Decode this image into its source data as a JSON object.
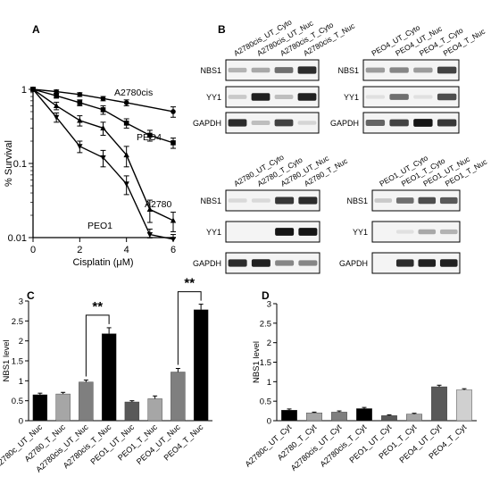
{
  "panels": {
    "A": "A",
    "B": "B",
    "C": "C",
    "D": "D"
  },
  "chart_data": [
    {
      "type": "line",
      "panel": "A",
      "title": "",
      "xlabel": "Cisplatin (μM)",
      "ylabel": "% Survival",
      "yscale": "log",
      "xlim": [
        0,
        6
      ],
      "ylim": [
        0.01,
        1
      ],
      "x_ticks": [
        0,
        2,
        4,
        6
      ],
      "y_ticks": [
        {
          "v": 1,
          "label": "1"
        },
        {
          "v": 0.1,
          "label": "0.1"
        },
        {
          "v": 0.01,
          "label": "0.01"
        }
      ],
      "series": [
        {
          "name": "A2780cis",
          "marker": "circle",
          "x": [
            0,
            1,
            2,
            3,
            4,
            6
          ],
          "y": [
            1.0,
            0.93,
            0.85,
            0.75,
            0.66,
            0.5
          ],
          "err": [
            0.04,
            0.05,
            0.05,
            0.05,
            0.06,
            0.08
          ]
        },
        {
          "name": "PEO4",
          "marker": "square",
          "x": [
            0,
            1,
            2,
            3,
            4,
            5,
            6
          ],
          "y": [
            1.0,
            0.82,
            0.66,
            0.53,
            0.35,
            0.24,
            0.19
          ],
          "err": [
            0.04,
            0.06,
            0.06,
            0.07,
            0.05,
            0.04,
            0.03
          ]
        },
        {
          "name": "A2780",
          "marker": "triangle",
          "x": [
            0,
            1,
            2,
            3,
            4,
            5,
            6
          ],
          "y": [
            1.0,
            0.6,
            0.38,
            0.3,
            0.13,
            0.024,
            0.017
          ],
          "err": [
            0.05,
            0.07,
            0.06,
            0.06,
            0.04,
            0.008,
            0.005
          ]
        },
        {
          "name": "PEO1",
          "marker": "triangle-down",
          "x": [
            0,
            1,
            2,
            3,
            4,
            5,
            6
          ],
          "y": [
            1.0,
            0.42,
            0.17,
            0.12,
            0.053,
            0.011,
            0.0095
          ],
          "err": [
            0.05,
            0.06,
            0.03,
            0.03,
            0.015,
            0.002,
            0.0015
          ]
        }
      ]
    },
    {
      "type": "bar",
      "panel": "C",
      "title": "",
      "xlabel": "",
      "ylabel": "NBS1 level",
      "ylim": [
        0,
        3
      ],
      "y_ticks": [
        0,
        0.5,
        1,
        1.5,
        2,
        2.5,
        3
      ],
      "categories": [
        "A2780c_UT_Nuc",
        "A2780_T_Nuc",
        "A2780cis_UT_Nuc",
        "A2780cis_T_Nuc",
        "PEO1_UT_Nuc",
        "PEO1_T_Nuc",
        "PEO4_UT_Nuc",
        "PEO4_T_Nuc"
      ],
      "values": [
        0.65,
        0.67,
        0.97,
        2.18,
        0.47,
        0.55,
        1.22,
        2.78
      ],
      "errors": [
        0.04,
        0.04,
        0.05,
        0.15,
        0.03,
        0.07,
        0.09,
        0.14
      ],
      "colors": [
        "#000000",
        "#a6a6a6",
        "#7f7f7f",
        "#000000",
        "#595959",
        "#a6a6a6",
        "#7f7f7f",
        "#000000"
      ],
      "annotations": [
        {
          "text": "**",
          "between": [
            2,
            3
          ]
        },
        {
          "text": "**",
          "between": [
            6,
            7
          ]
        }
      ]
    },
    {
      "type": "bar",
      "panel": "D",
      "title": "",
      "xlabel": "",
      "ylabel": "NBS1 level",
      "ylim": [
        0,
        3
      ],
      "y_ticks": [
        0,
        0.5,
        1,
        1.5,
        2,
        2.5,
        3
      ],
      "categories": [
        "A2780c_UT_Cyt",
        "A2780_T_Cyt",
        "A2780cis_UT_Cyt",
        "A2780cis_T_Cyt",
        "PEO1_UT_Cyt",
        "PEO1_T_Cyt",
        "PEO4_UT_Cyt",
        "PEO4_T_Cyt"
      ],
      "values": [
        0.27,
        0.2,
        0.22,
        0.31,
        0.13,
        0.17,
        0.87,
        0.79
      ],
      "errors": [
        0.03,
        0.02,
        0.03,
        0.03,
        0.02,
        0.02,
        0.04,
        0.03
      ],
      "colors": [
        "#000000",
        "#a6a6a6",
        "#7f7f7f",
        "#000000",
        "#595959",
        "#a6a6a6",
        "#595959",
        "#d0d0d0"
      ]
    }
  ],
  "blots": [
    {
      "id": "blot-a2780cis-peo-top-left",
      "lanes": [
        "A2780cis_UT_Cyto",
        "A2780cis_UT_Nuc",
        "A2780cis_T_Cyto",
        "A2780cis_T_Nuc"
      ],
      "rows": [
        {
          "label": "NBS1",
          "intensity": [
            0.25,
            0.3,
            0.55,
            0.85
          ]
        },
        {
          "label": "YY1",
          "intensity": [
            0.15,
            0.9,
            0.2,
            0.9
          ]
        },
        {
          "label": "GAPDH",
          "intensity": [
            0.85,
            0.2,
            0.75,
            0.1
          ]
        }
      ]
    },
    {
      "id": "blot-peo4",
      "lanes": [
        "PEO4_UT_Cyto",
        "PEO4_UT_Nuc",
        "PEO4_T_Cyto",
        "PEO4_T_Nuc"
      ],
      "rows": [
        {
          "label": "NBS1",
          "intensity": [
            0.35,
            0.45,
            0.35,
            0.75
          ]
        },
        {
          "label": "YY1",
          "intensity": [
            0.05,
            0.55,
            0.05,
            0.7
          ]
        },
        {
          "label": "GAPDH",
          "intensity": [
            0.6,
            0.75,
            0.95,
            0.8
          ]
        }
      ]
    },
    {
      "id": "blot-a2780",
      "lanes": [
        "A2780_UT_Cyto",
        "A2780_T_Cyto",
        "A2780_UT_Nuc",
        "A2780_T_Nuc"
      ],
      "rows": [
        {
          "label": "NBS1",
          "intensity": [
            0.08,
            0.08,
            0.8,
            0.85
          ]
        },
        {
          "label": "YY1",
          "intensity": [
            0.0,
            0.0,
            0.95,
            0.95
          ]
        },
        {
          "label": "GAPDH",
          "intensity": [
            0.85,
            0.9,
            0.45,
            0.45
          ]
        }
      ]
    },
    {
      "id": "blot-peo1",
      "lanes": [
        "PEO1_UT_Cyto",
        "PEO1_T_Cyto",
        "PEO1_UT_Nuc",
        "PEO1_T_Nuc"
      ],
      "rows": [
        {
          "label": "NBS1",
          "intensity": [
            0.15,
            0.55,
            0.7,
            0.65
          ]
        },
        {
          "label": "YY1",
          "intensity": [
            0.0,
            0.05,
            0.3,
            0.25
          ]
        },
        {
          "label": "GAPDH",
          "intensity": [
            0.0,
            0.85,
            0.9,
            0.9
          ]
        }
      ]
    }
  ]
}
